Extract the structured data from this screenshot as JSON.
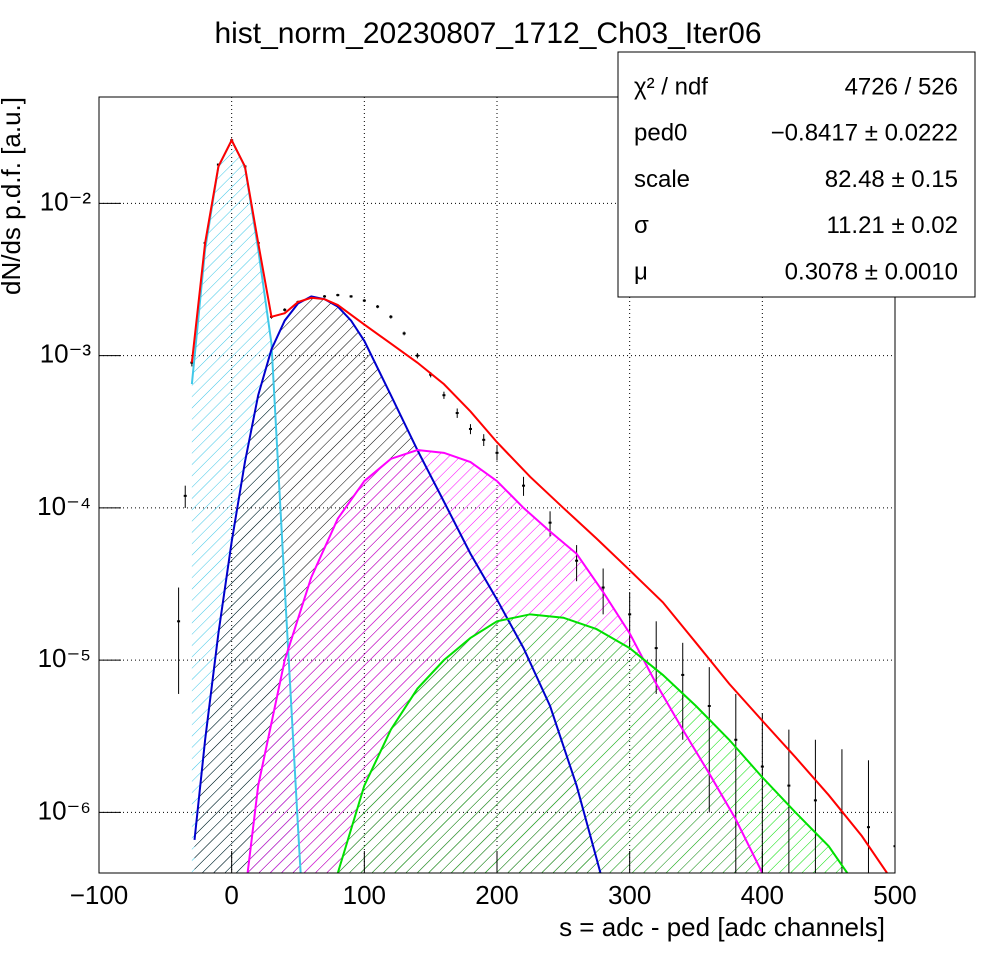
{
  "chart_data": {
    "type": "line",
    "title": "hist_norm_20230807_1712_Ch03_Iter06",
    "xlabel": "s = adc - ped [adc channels]",
    "ylabel": "dN/ds p.d.f. [a.u.]",
    "xlim": [
      -100,
      500
    ],
    "ylim": [
      4e-07,
      0.05
    ],
    "log_y": true,
    "grid": true,
    "xticks": [
      {
        "value": -100,
        "label": "−100"
      },
      0,
      100,
      200,
      300,
      400,
      500
    ],
    "yticks": [
      {
        "value": 1e-06,
        "label": "10⁻⁶"
      },
      {
        "value": 1e-05,
        "label": "10⁻⁵"
      },
      {
        "value": 0.0001,
        "label": "10⁻⁴"
      },
      {
        "value": 0.001,
        "label": "10⁻³"
      },
      {
        "value": 0.01,
        "label": "10⁻²"
      }
    ],
    "points": {
      "color": "#000000",
      "x": [
        -40,
        -35,
        -30,
        -20,
        -10,
        0,
        10,
        20,
        30,
        40,
        50,
        60,
        70,
        80,
        90,
        100,
        110,
        120,
        130,
        140,
        150,
        160,
        170,
        180,
        190,
        200,
        220,
        240,
        260,
        280,
        300,
        320,
        340,
        360,
        380,
        400,
        420,
        440,
        460,
        480,
        500
      ],
      "values": [
        1.8e-05,
        0.00012,
        0.0009,
        0.0055,
        0.018,
        0.026,
        0.0175,
        0.0055,
        0.0018,
        0.002,
        0.00225,
        0.0024,
        0.00245,
        0.0025,
        0.00245,
        0.0023,
        0.0021,
        0.0018,
        0.0014,
        0.001,
        0.00075,
        0.00055,
        0.00042,
        0.00033,
        0.00028,
        0.00023,
        0.00014,
        8e-05,
        4.5e-05,
        3e-05,
        2e-05,
        1.2e-05,
        8e-06,
        5e-06,
        3e-06,
        2e-06,
        1.5e-06,
        1.2e-06,
        1e-06,
        8e-07,
        6e-07
      ],
      "errors": [
        1.2e-05,
        2e-05,
        5e-05,
        0.0001,
        0.0002,
        0.00025,
        0.0002,
        0.0001,
        5e-05,
        5e-05,
        5e-05,
        5e-05,
        5e-05,
        5e-05,
        5e-05,
        5e-05,
        5e-05,
        5e-05,
        4e-05,
        4e-05,
        3e-05,
        3e-05,
        3e-05,
        2.5e-05,
        2.5e-05,
        2.5e-05,
        2e-05,
        1.5e-05,
        1.2e-05,
        1e-05,
        8e-06,
        6e-06,
        5e-06,
        4e-06,
        3e-06,
        2.5e-06,
        2e-06,
        1.8e-06,
        1.6e-06,
        1.4e-06,
        1.2e-06
      ]
    },
    "series": [
      {
        "color": "#40c8e8",
        "hatch": "#40c8e8",
        "x": [
          -30,
          -20,
          -10,
          0,
          10,
          20,
          30,
          40,
          50,
          52
        ],
        "values": [
          0.00065,
          0.005,
          0.0174,
          0.026,
          0.0174,
          0.005,
          0.0012,
          3e-05,
          8e-07,
          4e-07
        ]
      },
      {
        "color": "#0000cc",
        "hatch": "#000000",
        "x": [
          -28,
          -20,
          -10,
          0,
          10,
          20,
          30,
          40,
          50,
          60,
          70,
          80,
          90,
          100,
          120,
          140,
          160,
          180,
          200,
          220,
          240,
          260,
          278
        ],
        "values": [
          6.6e-07,
          3e-06,
          1.5e-05,
          6e-05,
          0.0002,
          0.00055,
          0.0011,
          0.0017,
          0.0022,
          0.00245,
          0.00235,
          0.0021,
          0.0017,
          0.00125,
          0.00055,
          0.00024,
          0.00011,
          5e-05,
          2.5e-05,
          1.2e-05,
          5e-06,
          1.5e-06,
          4e-07
        ]
      },
      {
        "color": "#ff00ff",
        "hatch": "#ff00ff",
        "x": [
          12,
          20,
          40,
          60,
          80,
          100,
          120,
          140,
          160,
          180,
          200,
          220,
          240,
          260,
          280,
          300,
          320,
          340,
          360,
          380,
          400
        ],
        "values": [
          4e-07,
          1.5e-06,
          1e-05,
          3.5e-05,
          8.5e-05,
          0.00015,
          0.00021,
          0.00024,
          0.00023,
          0.0002,
          0.00015,
          0.0001,
          7e-05,
          5e-05,
          2.8e-05,
          1.5e-05,
          7e-06,
          3.5e-06,
          1.8e-06,
          9e-07,
          4e-07
        ]
      },
      {
        "color": "#00e000",
        "hatch": "#00e000",
        "x": [
          80,
          100,
          120,
          140,
          160,
          180,
          200,
          225,
          250,
          275,
          300,
          325,
          350,
          375,
          400,
          425,
          450,
          464
        ],
        "values": [
          4e-07,
          1.5e-06,
          3.5e-06,
          6.5e-06,
          1e-05,
          1.4e-05,
          1.8e-05,
          2e-05,
          1.9e-05,
          1.6e-05,
          1.2e-05,
          8e-06,
          5e-06,
          3e-06,
          1.7e-06,
          1e-06,
          6e-07,
          4e-07
        ]
      },
      {
        "color": "#ff0000",
        "x": [
          -30,
          -20,
          -10,
          0,
          10,
          20,
          30,
          40,
          50,
          60,
          70,
          80,
          100,
          120,
          140,
          160,
          180,
          200,
          225,
          250,
          275,
          300,
          325,
          350,
          375,
          400,
          425,
          450,
          475,
          494
        ],
        "values": [
          0.0009,
          0.0055,
          0.0175,
          0.026,
          0.0175,
          0.0055,
          0.0018,
          0.0019,
          0.00225,
          0.0024,
          0.00235,
          0.00215,
          0.0016,
          0.0012,
          0.0009,
          0.00065,
          0.00043,
          0.00027,
          0.00016,
          0.0001,
          6.3e-05,
          3.9e-05,
          2.4e-05,
          1.3e-05,
          7e-06,
          4e-06,
          2.3e-06,
          1.3e-06,
          7e-07,
          4e-07
        ]
      }
    ],
    "stats": [
      {
        "label": "χ² / ndf",
        "value": "4726 / 526"
      },
      {
        "label": "ped0",
        "value": "−0.8417 ± 0.0222"
      },
      {
        "label": "scale",
        "value": "82.48 ± 0.15"
      },
      {
        "label": "σ",
        "value": "11.21 ± 0.02"
      },
      {
        "label": "μ",
        "value": "0.3078 ± 0.0010"
      }
    ]
  }
}
